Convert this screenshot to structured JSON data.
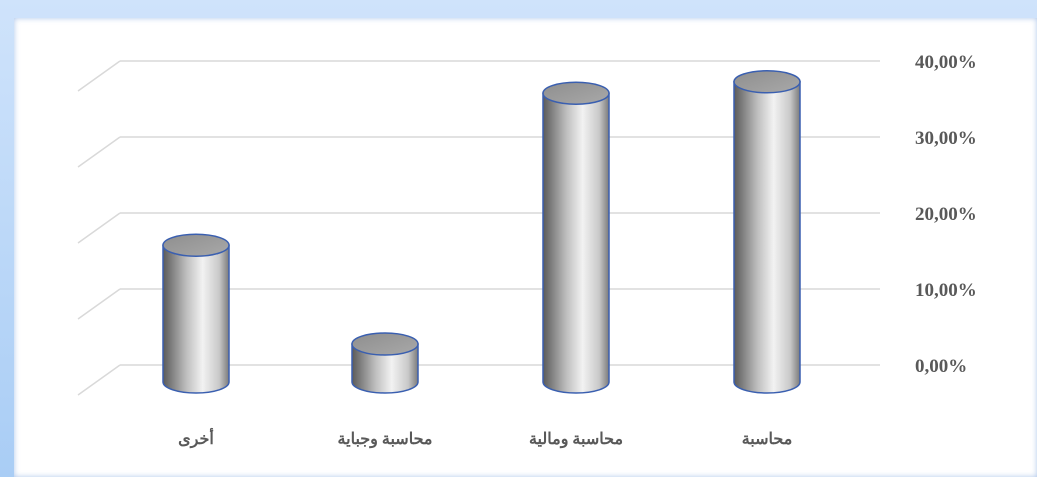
{
  "chart_data": {
    "type": "bar",
    "style": "3d-cylinder",
    "categories": [
      "محاسبة",
      "محاسبة ومالية",
      "محاسبة وجباية",
      "أخرى"
    ],
    "values": [
      39.5,
      38.0,
      5.0,
      18.0
    ],
    "y_ticks": [
      "0,00%",
      "10,00%",
      "20,00%",
      "30,00%",
      "40,00%"
    ],
    "ylim": [
      0,
      40
    ],
    "y_axis_side": "right",
    "grid": true,
    "legend": false,
    "colors": {
      "bar_fill": "#b8b8b8",
      "bar_outline": "#3a5fb0",
      "grid": "#d9d9d9",
      "text": "#595959"
    }
  }
}
